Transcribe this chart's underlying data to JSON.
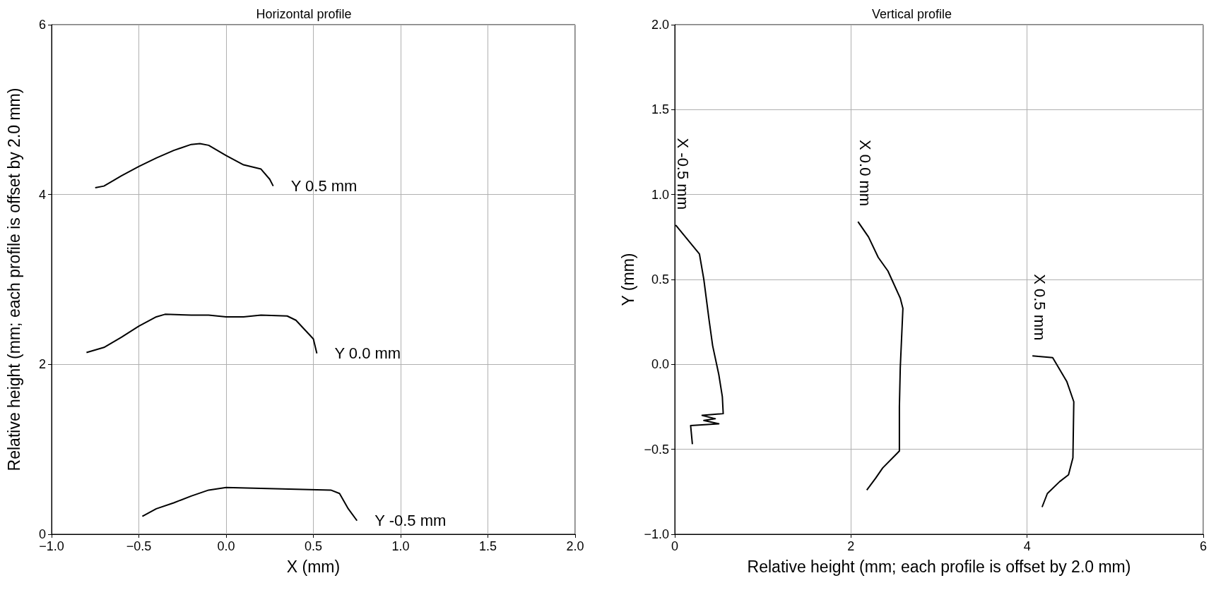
{
  "chart_data": [
    {
      "type": "line",
      "title": "Horizontal profile",
      "xlabel": "X (mm)",
      "ylabel": "Relative height (mm; each profile is offset by 2.0 mm)",
      "xlim": [
        -1,
        2
      ],
      "ylim": [
        0,
        6
      ],
      "xticks": [
        {
          "value": -1,
          "label": "−1.0"
        },
        {
          "value": -0.5,
          "label": "−0.5"
        },
        {
          "value": 0,
          "label": "0.0"
        },
        {
          "value": 0.5,
          "label": "0.5"
        },
        {
          "value": 1,
          "label": "1.0"
        },
        {
          "value": 1.5,
          "label": "1.5"
        },
        {
          "value": 2,
          "label": "2.0"
        }
      ],
      "yticks": [
        0,
        2,
        4,
        6
      ],
      "grid": true,
      "series": [
        {
          "name": "Y 0.5 mm",
          "color": "#000000",
          "x": [
            -0.75,
            -0.7,
            -0.6,
            -0.5,
            -0.4,
            -0.3,
            -0.2,
            -0.15,
            -0.1,
            0.0,
            0.1,
            0.2,
            0.25,
            0.27
          ],
          "values": [
            4.08,
            4.1,
            4.22,
            4.33,
            4.43,
            4.52,
            4.59,
            4.6,
            4.58,
            4.46,
            4.35,
            4.3,
            4.18,
            4.1
          ]
        },
        {
          "name": "Y 0.0 mm",
          "color": "#000000",
          "x": [
            -0.8,
            -0.7,
            -0.6,
            -0.5,
            -0.4,
            -0.35,
            -0.2,
            -0.1,
            0.0,
            0.1,
            0.2,
            0.35,
            0.4,
            0.5,
            0.52
          ],
          "values": [
            2.14,
            2.2,
            2.32,
            2.45,
            2.56,
            2.59,
            2.58,
            2.58,
            2.56,
            2.56,
            2.58,
            2.57,
            2.52,
            2.3,
            2.13
          ]
        },
        {
          "name": "Y -0.5 mm",
          "color": "#000000",
          "x": [
            -0.48,
            -0.4,
            -0.3,
            -0.2,
            -0.1,
            0.0,
            0.2,
            0.4,
            0.6,
            0.65,
            0.7,
            0.75
          ],
          "values": [
            0.21,
            0.3,
            0.37,
            0.45,
            0.52,
            0.55,
            0.54,
            0.53,
            0.52,
            0.48,
            0.3,
            0.16
          ]
        }
      ]
    },
    {
      "type": "line",
      "title": "Vertical profile",
      "xlabel": "Relative height (mm; each profile is offset by 2.0 mm)",
      "ylabel": "Y (mm)",
      "xlim": [
        0,
        6
      ],
      "ylim": [
        -1,
        2
      ],
      "xticks": [
        0,
        2,
        4,
        6
      ],
      "yticks": [
        {
          "value": -1,
          "label": "−1.0"
        },
        {
          "value": -0.5,
          "label": "−0.5"
        },
        {
          "value": 0,
          "label": "0.0"
        },
        {
          "value": 0.5,
          "label": "0.5"
        },
        {
          "value": 1,
          "label": "1.0"
        },
        {
          "value": 1.5,
          "label": "1.5"
        },
        {
          "value": 2,
          "label": "2.0"
        }
      ],
      "grid": true,
      "series": [
        {
          "name": "X -0.5 mm",
          "color": "#000000",
          "x": [
            0.01,
            0.28,
            0.33,
            0.39,
            0.43,
            0.5,
            0.54,
            0.55,
            0.31,
            0.46,
            0.33,
            0.5,
            0.18,
            0.2
          ],
          "values": [
            0.82,
            0.65,
            0.5,
            0.26,
            0.11,
            -0.06,
            -0.19,
            -0.29,
            -0.3,
            -0.32,
            -0.33,
            -0.35,
            -0.36,
            -0.47
          ]
        },
        {
          "name": "X 0.0 mm",
          "color": "#000000",
          "x": [
            2.08,
            2.2,
            2.31,
            2.42,
            2.56,
            2.59,
            2.56,
            2.55,
            2.55,
            2.36,
            2.28,
            2.18
          ],
          "values": [
            0.84,
            0.75,
            0.63,
            0.55,
            0.39,
            0.33,
            -0.02,
            -0.25,
            -0.51,
            -0.61,
            -0.67,
            -0.74
          ]
        },
        {
          "name": "X 0.5 mm",
          "color": "#000000",
          "x": [
            4.06,
            4.29,
            4.45,
            4.53,
            4.52,
            4.47,
            4.37,
            4.23,
            4.17
          ],
          "values": [
            0.05,
            0.04,
            -0.1,
            -0.22,
            -0.55,
            -0.65,
            -0.69,
            -0.76,
            -0.84
          ]
        }
      ]
    }
  ]
}
